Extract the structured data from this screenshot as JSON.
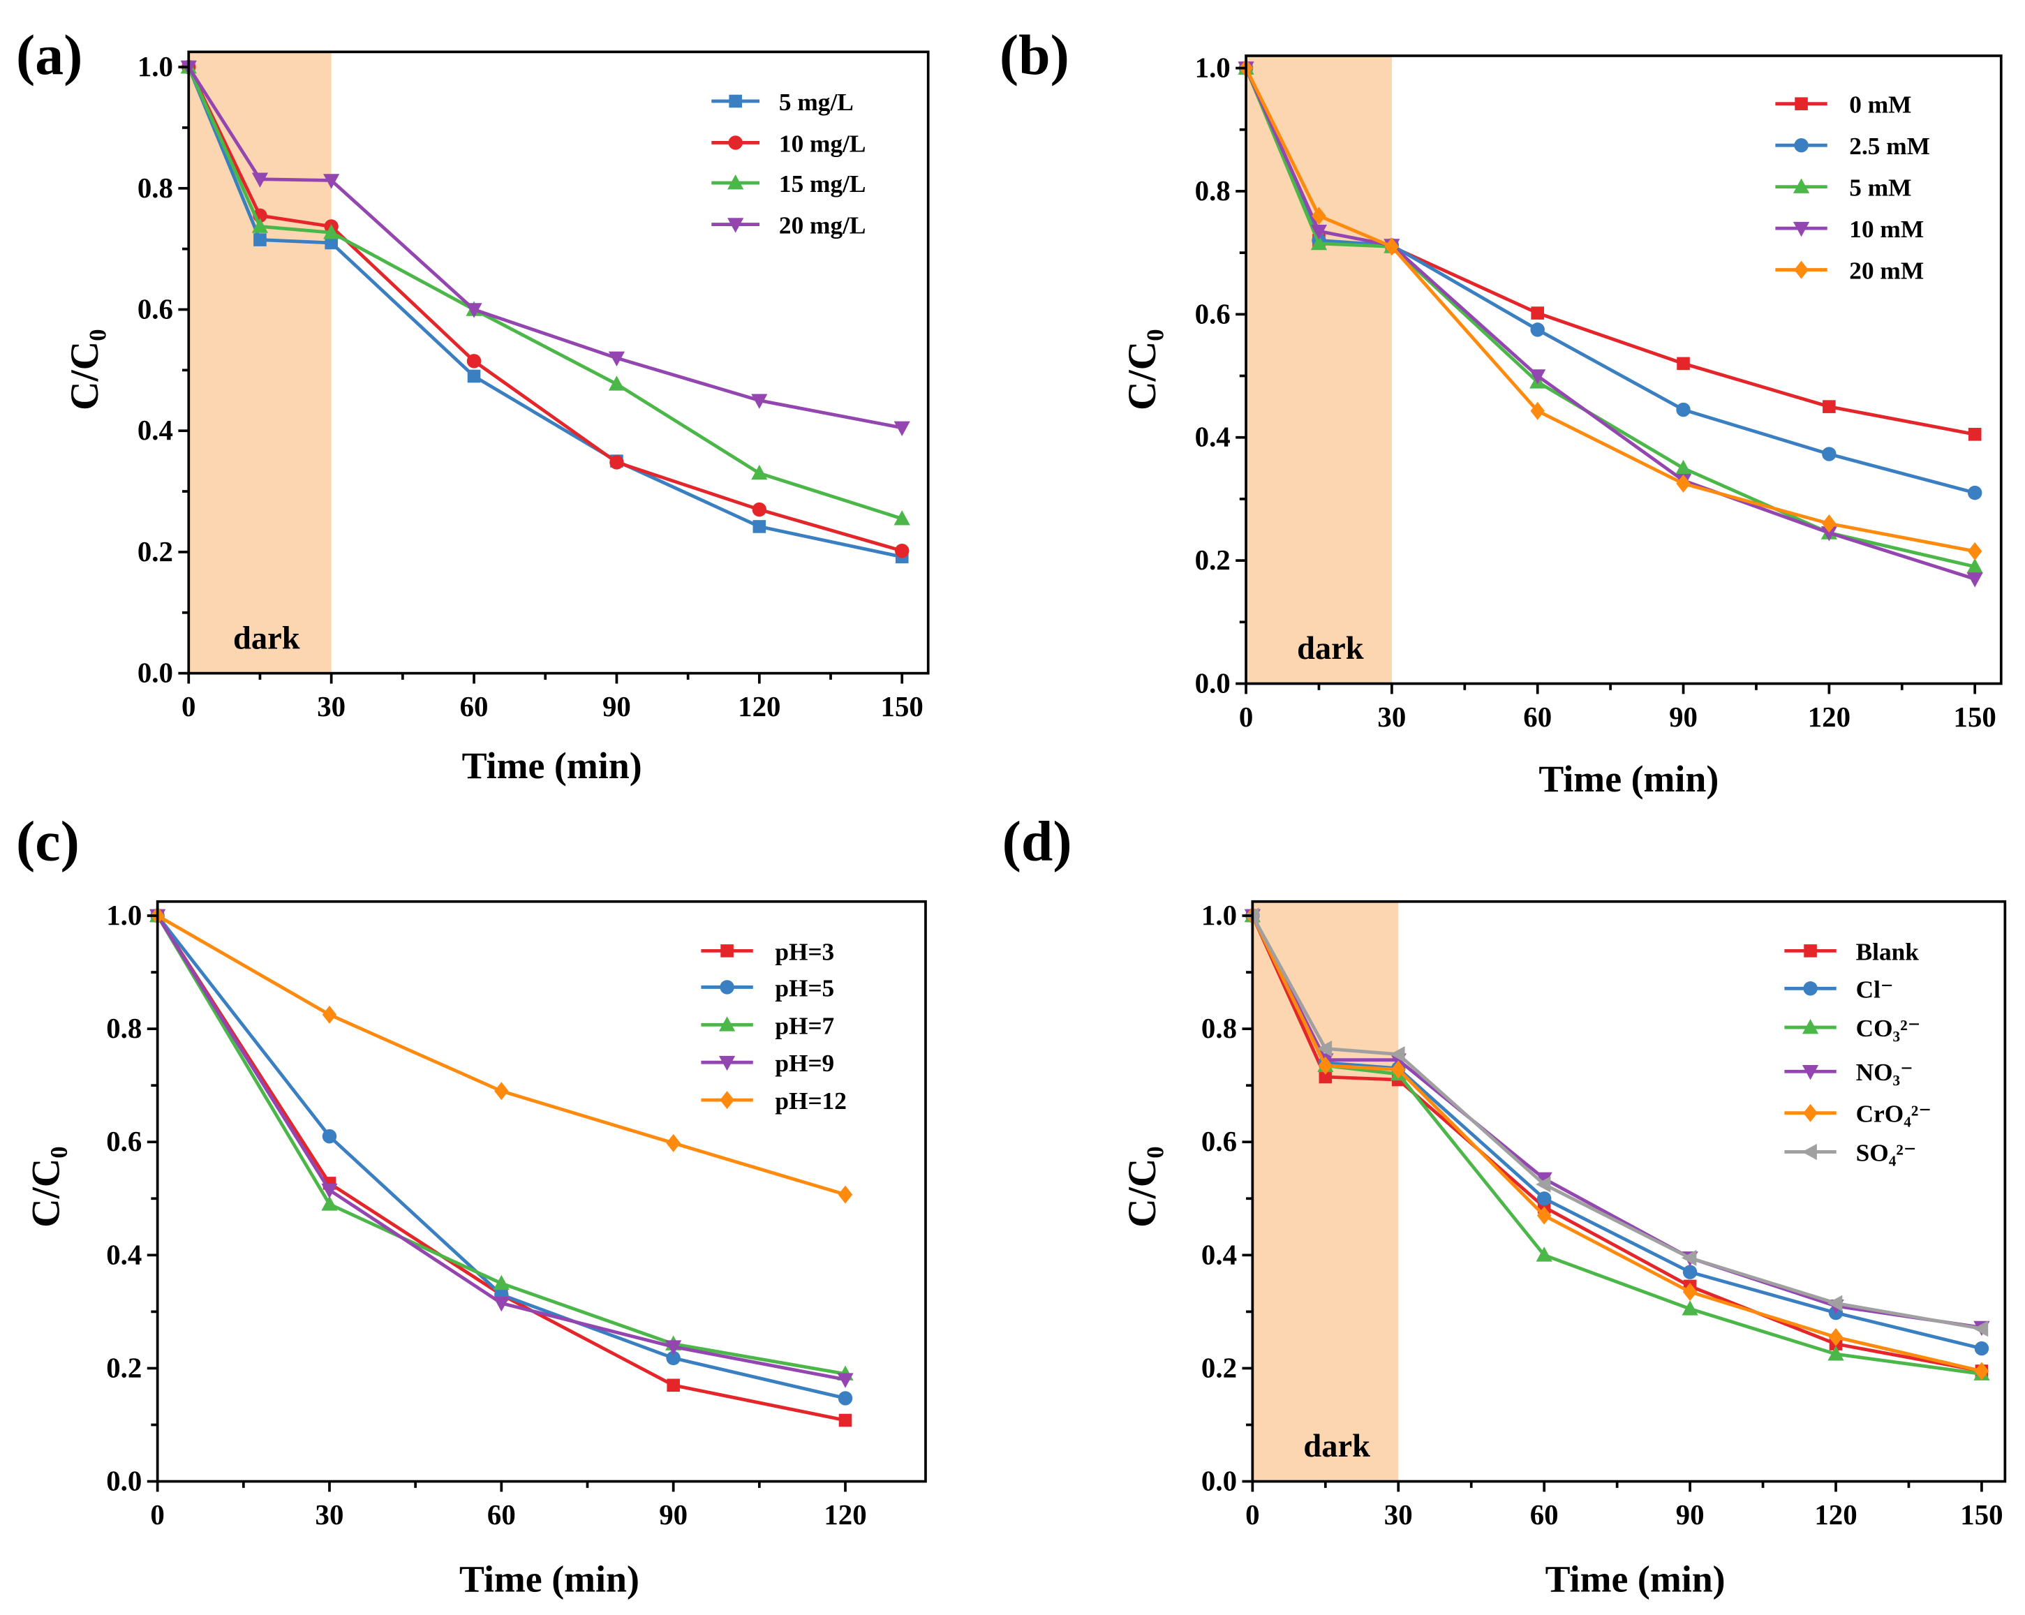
{
  "colors": {
    "red": "#e4262a",
    "blue": "#3a7fc1",
    "green": "#4bb748",
    "purple": "#9446b0",
    "orange": "#ff8a0d",
    "gray": "#a0a0a0",
    "dark_region": "#fbd6b0"
  },
  "chart_data": [
    {
      "panel_label": "(a)",
      "type": "line",
      "xlabel": "Time (min)",
      "ylabel": "C/C₀",
      "xlim": [
        0,
        155.5
      ],
      "ylim": [
        0,
        1.025
      ],
      "xticks": [
        0,
        30,
        60,
        90,
        120,
        150
      ],
      "yticks": [
        0.0,
        0.2,
        0.4,
        0.6,
        0.8,
        1.0
      ],
      "shaded_region": {
        "x": [
          0,
          30
        ],
        "label": "dark"
      },
      "legend_position": "top-right",
      "x": [
        0,
        15,
        30,
        60,
        90,
        120,
        150
      ],
      "series": [
        {
          "name": "5 mg/L",
          "color": "blue",
          "marker": "square",
          "values": [
            1.0,
            0.715,
            0.71,
            0.49,
            0.35,
            0.242,
            0.192
          ]
        },
        {
          "name": "10 mg/L",
          "color": "red",
          "marker": "circle",
          "values": [
            1.0,
            0.755,
            0.737,
            0.515,
            0.348,
            0.27,
            0.202
          ]
        },
        {
          "name": "15 mg/L",
          "color": "green",
          "marker": "triangle-up",
          "values": [
            1.0,
            0.737,
            0.727,
            0.6,
            0.477,
            0.33,
            0.255
          ]
        },
        {
          "name": "20 mg/L",
          "color": "purple",
          "marker": "triangle-down",
          "values": [
            1.0,
            0.815,
            0.813,
            0.6,
            0.52,
            0.45,
            0.405
          ]
        }
      ]
    },
    {
      "panel_label": "(b)",
      "type": "line",
      "xlabel": "Time (min)",
      "ylabel": "C/C₀",
      "xlim": [
        0,
        155.4
      ],
      "ylim": [
        0,
        1.02
      ],
      "xticks": [
        0,
        30,
        60,
        90,
        120,
        150
      ],
      "yticks": [
        0.0,
        0.2,
        0.4,
        0.6,
        0.8,
        1.0
      ],
      "shaded_region": {
        "x": [
          0,
          30
        ],
        "label": "dark"
      },
      "legend_position": "top-right",
      "x": [
        0,
        15,
        30,
        60,
        90,
        120,
        150
      ],
      "series": [
        {
          "name": "0 mM",
          "color": "red",
          "marker": "square",
          "values": [
            1.0,
            0.72,
            0.71,
            0.602,
            0.52,
            0.45,
            0.405
          ]
        },
        {
          "name": "2.5 mM",
          "color": "blue",
          "marker": "circle",
          "values": [
            1.0,
            0.72,
            0.712,
            0.575,
            0.445,
            0.373,
            0.31
          ]
        },
        {
          "name": "5 mM",
          "color": "green",
          "marker": "triangle-up",
          "values": [
            1.0,
            0.715,
            0.71,
            0.49,
            0.35,
            0.245,
            0.19
          ]
        },
        {
          "name": "10 mM",
          "color": "purple",
          "marker": "triangle-down",
          "values": [
            1.0,
            0.735,
            0.712,
            0.5,
            0.33,
            0.245,
            0.17
          ]
        },
        {
          "name": "20 mM",
          "color": "orange",
          "marker": "diamond",
          "values": [
            1.0,
            0.76,
            0.71,
            0.443,
            0.325,
            0.26,
            0.215
          ]
        }
      ]
    },
    {
      "panel_label": "(c)",
      "type": "line",
      "xlabel": "Time (min)",
      "ylabel": "C/C₀",
      "xlim": [
        0,
        134
      ],
      "ylim": [
        0,
        1.025
      ],
      "xticks": [
        0,
        30,
        60,
        90,
        120
      ],
      "yticks": [
        0.0,
        0.2,
        0.4,
        0.6,
        0.8,
        1.0
      ],
      "legend_position": "top-right",
      "x": [
        0,
        30,
        60,
        90,
        120
      ],
      "series": [
        {
          "name": "pH=3",
          "color": "red",
          "marker": "square",
          "values": [
            1.0,
            0.527,
            0.33,
            0.17,
            0.108
          ]
        },
        {
          "name": "pH=5",
          "color": "blue",
          "marker": "circle",
          "values": [
            1.0,
            0.61,
            0.33,
            0.218,
            0.147
          ]
        },
        {
          "name": "pH=7",
          "color": "green",
          "marker": "triangle-up",
          "values": [
            1.0,
            0.49,
            0.35,
            0.243,
            0.19
          ]
        },
        {
          "name": "pH=9",
          "color": "purple",
          "marker": "triangle-down",
          "values": [
            1.0,
            0.515,
            0.315,
            0.238,
            0.18
          ]
        },
        {
          "name": "pH=12",
          "color": "orange",
          "marker": "diamond",
          "values": [
            1.0,
            0.825,
            0.69,
            0.598,
            0.507
          ]
        }
      ]
    },
    {
      "panel_label": "(d)",
      "type": "line",
      "xlabel": "Time (min)",
      "ylabel": "C/C₀",
      "xlim": [
        0,
        154.8
      ],
      "ylim": [
        0,
        1.025
      ],
      "xticks": [
        0,
        30,
        60,
        90,
        120,
        150
      ],
      "yticks": [
        0.0,
        0.2,
        0.4,
        0.6,
        0.8,
        1.0
      ],
      "shaded_region": {
        "x": [
          0,
          30
        ],
        "label": "dark"
      },
      "legend_position": "top-right",
      "x": [
        0,
        15,
        30,
        60,
        90,
        120,
        150
      ],
      "series": [
        {
          "name": "Blank",
          "color": "red",
          "marker": "square",
          "values": [
            1.0,
            0.715,
            0.71,
            0.485,
            0.345,
            0.243,
            0.195
          ]
        },
        {
          "name": "Cl⁻",
          "color": "blue",
          "marker": "circle",
          "values": [
            1.0,
            0.74,
            0.73,
            0.5,
            0.37,
            0.298,
            0.235
          ]
        },
        {
          "name": "CO₃²⁻",
          "color": "green",
          "marker": "triangle-up",
          "values": [
            1.0,
            0.735,
            0.72,
            0.4,
            0.305,
            0.225,
            0.19
          ]
        },
        {
          "name": "NO₃⁻",
          "color": "purple",
          "marker": "triangle-down",
          "values": [
            1.0,
            0.745,
            0.745,
            0.535,
            0.395,
            0.31,
            0.272
          ]
        },
        {
          "name": "CrO₄²⁻",
          "color": "orange",
          "marker": "diamond",
          "values": [
            1.0,
            0.735,
            0.728,
            0.47,
            0.335,
            0.255,
            0.195
          ]
        },
        {
          "name": "SO₄²⁻",
          "color": "gray",
          "marker": "triangle-left",
          "values": [
            1.0,
            0.765,
            0.755,
            0.525,
            0.395,
            0.315,
            0.27
          ]
        }
      ]
    }
  ]
}
